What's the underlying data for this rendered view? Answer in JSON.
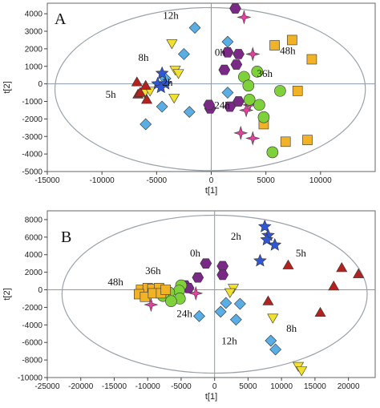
{
  "chart_data": [
    {
      "type": "scatter",
      "panel": "A",
      "xlabel": "t[1]",
      "ylabel": "t[2]",
      "xlim": [
        -15000,
        15000
      ],
      "ylim": [
        -5000,
        4600
      ],
      "xticks": [
        -15000,
        -10000,
        -5000,
        0,
        5000,
        10000
      ],
      "yticks": [
        -5000,
        -4000,
        -3000,
        -2000,
        -1000,
        0,
        1000,
        2000,
        3000,
        4000
      ],
      "ellipse": {
        "cx": -100,
        "cy": -300,
        "rx": 14200,
        "ry": 4650
      },
      "series": [
        {
          "shape": "diamond",
          "color": "#5aaee6",
          "points": [
            [
              -1500,
              3200
            ],
            [
              1500,
              2400
            ],
            [
              -2500,
              1700
            ],
            [
              -4200,
              300
            ],
            [
              1500,
              -500
            ],
            [
              -2000,
              -1600
            ],
            [
              -6000,
              -2300
            ],
            [
              -4500,
              -1300
            ]
          ]
        },
        {
          "shape": "hexagon",
          "color": "#7a2a86",
          "points": [
            [
              2200,
              4300
            ],
            [
              1500,
              1800
            ],
            [
              2500,
              1700
            ],
            [
              2300,
              1100
            ],
            [
              1200,
              800
            ],
            [
              -100,
              -1400
            ],
            [
              -200,
              -1200
            ],
            [
              2500,
              -1000
            ],
            [
              1700,
              -1300
            ]
          ]
        },
        {
          "shape": "star4",
          "color": "#e0439e",
          "points": [
            [
              3000,
              3800
            ],
            [
              3800,
              1700
            ],
            [
              3500,
              -1200
            ],
            [
              2700,
              -2800
            ],
            [
              3800,
              -3100
            ],
            [
              3200,
              -1500
            ]
          ]
        },
        {
          "shape": "square",
          "color": "#f2b225",
          "points": [
            [
              5800,
              2200
            ],
            [
              7400,
              2500
            ],
            [
              9200,
              1400
            ],
            [
              7900,
              -400
            ],
            [
              6800,
              -3300
            ],
            [
              8800,
              -3200
            ],
            [
              4800,
              -2300
            ]
          ]
        },
        {
          "shape": "circle",
          "color": "#7fd13b",
          "points": [
            [
              3000,
              400
            ],
            [
              4200,
              700
            ],
            [
              3400,
              -100
            ],
            [
              3500,
              -900
            ],
            [
              4400,
              -1200
            ],
            [
              6300,
              -400
            ],
            [
              4800,
              -1900
            ],
            [
              5600,
              -3900
            ]
          ]
        },
        {
          "shape": "triangle-down",
          "color": "#f2e02f",
          "points": [
            [
              -3600,
              2300
            ],
            [
              -3300,
              800
            ],
            [
              -3000,
              600
            ],
            [
              -6100,
              -500
            ],
            [
              -5600,
              -400
            ],
            [
              -3400,
              -800
            ]
          ]
        },
        {
          "shape": "star",
          "color": "#2e56d6",
          "points": [
            [
              -4500,
              600
            ],
            [
              -4900,
              0
            ],
            [
              -4200,
              0
            ],
            [
              -4600,
              -200
            ]
          ]
        },
        {
          "shape": "triangle-up",
          "color": "#b3221e",
          "points": [
            [
              -6800,
              100
            ],
            [
              -6000,
              -100
            ],
            [
              -6700,
              -600
            ],
            [
              -5900,
              -900
            ],
            [
              -6500,
              -500
            ]
          ]
        }
      ],
      "labels": [
        {
          "text": "12h",
          "x": -3700,
          "y": 3700
        },
        {
          "text": "8h",
          "x": -6200,
          "y": 1300
        },
        {
          "text": "0h",
          "x": 800,
          "y": 1600
        },
        {
          "text": "48h",
          "x": 7000,
          "y": 1700
        },
        {
          "text": "36h",
          "x": 4900,
          "y": 400
        },
        {
          "text": "2h",
          "x": -4000,
          "y": -100
        },
        {
          "text": "5h",
          "x": -9200,
          "y": -800
        },
        {
          "text": "24h",
          "x": 1000,
          "y": -1400
        }
      ]
    },
    {
      "type": "scatter",
      "panel": "B",
      "xlabel": "t[1]",
      "ylabel": "t[2]",
      "xlim": [
        -25000,
        24000
      ],
      "ylim": [
        -10000,
        9000
      ],
      "xticks": [
        -25000,
        -20000,
        -15000,
        -10000,
        -5000,
        0,
        5000,
        10000,
        15000,
        20000
      ],
      "yticks": [
        -10000,
        -8000,
        -6000,
        -4000,
        -2000,
        0,
        2000,
        4000,
        6000,
        8000
      ],
      "ellipse": {
        "cx": 0,
        "cy": -500,
        "rx": 22800,
        "ry": 9000
      },
      "series": [
        {
          "shape": "star",
          "color": "#2e56d6",
          "points": [
            [
              7500,
              7200
            ],
            [
              8000,
              6200
            ],
            [
              7800,
              5700
            ],
            [
              9000,
              5100
            ],
            [
              6800,
              3300
            ]
          ]
        },
        {
          "shape": "triangle-up",
          "color": "#b3221e",
          "points": [
            [
              11000,
              2800
            ],
            [
              19000,
              2500
            ],
            [
              21500,
              1800
            ],
            [
              17800,
              400
            ],
            [
              8000,
              -1300
            ],
            [
              15800,
              -2600
            ]
          ]
        },
        {
          "shape": "triangle-down",
          "color": "#f2e02f",
          "points": [
            [
              2800,
              200
            ],
            [
              2300,
              -300
            ],
            [
              8700,
              -3200
            ],
            [
              12500,
              -8700
            ],
            [
              13000,
              -9200
            ]
          ]
        },
        {
          "shape": "diamond",
          "color": "#5aaee6",
          "points": [
            [
              1700,
              -1500
            ],
            [
              900,
              -2500
            ],
            [
              3800,
              -1600
            ],
            [
              3200,
              -3400
            ],
            [
              -2300,
              -3000
            ],
            [
              8400,
              -5800
            ],
            [
              9100,
              -6800
            ]
          ]
        },
        {
          "shape": "hexagon",
          "color": "#7a2a86",
          "points": [
            [
              -1300,
              3000
            ],
            [
              1200,
              2700
            ],
            [
              1200,
              1700
            ],
            [
              -2500,
              1400
            ],
            [
              -4400,
              500
            ],
            [
              -3900,
              200
            ]
          ]
        },
        {
          "shape": "star4",
          "color": "#e0439e",
          "points": [
            [
              -2800,
              -400
            ],
            [
              -9500,
              -1700
            ]
          ]
        },
        {
          "shape": "circle",
          "color": "#7fd13b",
          "points": [
            [
              -5000,
              500
            ],
            [
              -5300,
              -100
            ],
            [
              -6800,
              -300
            ],
            [
              -7700,
              -700
            ],
            [
              -5200,
              -1000
            ],
            [
              -6500,
              -1300
            ]
          ]
        },
        {
          "shape": "square",
          "color": "#f2b225",
          "points": [
            [
              -11000,
              0
            ],
            [
              -10000,
              200
            ],
            [
              -9300,
              100
            ],
            [
              -8300,
              200
            ],
            [
              -11300,
              -500
            ],
            [
              -10400,
              -800
            ],
            [
              -9200,
              -400
            ],
            [
              -8000,
              -400
            ],
            [
              -7300,
              0
            ]
          ]
        }
      ],
      "labels": [
        {
          "text": "2h",
          "x": 3200,
          "y": 5700
        },
        {
          "text": "0h",
          "x": -2900,
          "y": 3800
        },
        {
          "text": "5h",
          "x": 12900,
          "y": 3800
        },
        {
          "text": "36h",
          "x": -9200,
          "y": 1800
        },
        {
          "text": "48h",
          "x": -14800,
          "y": 500
        },
        {
          "text": "24h",
          "x": -4500,
          "y": -3100
        },
        {
          "text": "8h",
          "x": 11500,
          "y": -4800
        },
        {
          "text": "12h",
          "x": 2200,
          "y": -6200
        }
      ]
    }
  ]
}
